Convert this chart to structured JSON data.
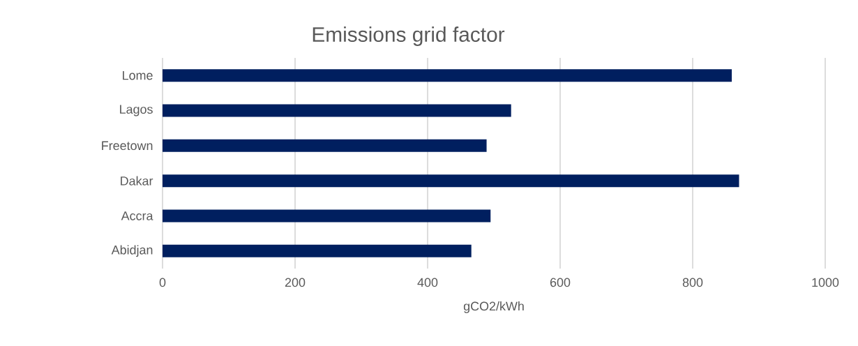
{
  "chart_data": {
    "type": "bar",
    "orientation": "horizontal",
    "title": "Emissions grid factor",
    "xlabel": "gCO2/kWh",
    "categories": [
      "Lome",
      "Lagos",
      "Freetown",
      "Dakar",
      "Accra",
      "Abidjan"
    ],
    "values": [
      859,
      526,
      489,
      870,
      495,
      466
    ],
    "color": "#001f5f",
    "xlim": [
      0,
      1000
    ],
    "xticks": [
      0,
      200,
      400,
      600,
      800,
      1000
    ],
    "grid": "x"
  }
}
